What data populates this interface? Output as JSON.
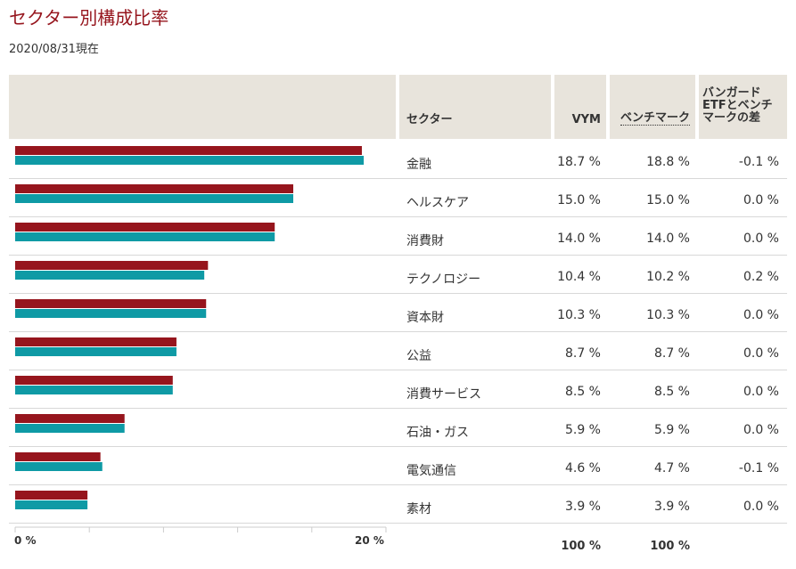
{
  "page": {
    "title": "セクター別構成比率",
    "date": "2020/08/31現在"
  },
  "table": {
    "headers": {
      "sector": "セクター",
      "vym": "VYM",
      "benchmark": "ベンチマーク",
      "diff_line1": "バンガード",
      "diff_line2": "ETFとベンチ",
      "diff_line3": "マークの差"
    },
    "rows": [
      {
        "sector": "金融",
        "vym": "18.7 %",
        "benchmark": "18.8 %",
        "diff": "-0.1 %"
      },
      {
        "sector": "ヘルスケア",
        "vym": "15.0 %",
        "benchmark": "15.0 %",
        "diff": "0.0 %"
      },
      {
        "sector": "消費財",
        "vym": "14.0 %",
        "benchmark": "14.0 %",
        "diff": "0.0 %"
      },
      {
        "sector": "テクノロジー",
        "vym": "10.4 %",
        "benchmark": "10.2 %",
        "diff": "0.2 %"
      },
      {
        "sector": "資本財",
        "vym": "10.3 %",
        "benchmark": "10.3 %",
        "diff": "0.0 %"
      },
      {
        "sector": "公益",
        "vym": "8.7 %",
        "benchmark": "8.7 %",
        "diff": "0.0 %"
      },
      {
        "sector": "消費サービス",
        "vym": "8.5 %",
        "benchmark": "8.5 %",
        "diff": "0.0 %"
      },
      {
        "sector": "石油・ガス",
        "vym": "5.9 %",
        "benchmark": "5.9 %",
        "diff": "0.0 %"
      },
      {
        "sector": "電気通信",
        "vym": "4.6 %",
        "benchmark": "4.7 %",
        "diff": "-0.1 %"
      },
      {
        "sector": "素材",
        "vym": "3.9 %",
        "benchmark": "3.9 %",
        "diff": "0.0 %"
      }
    ],
    "totals": {
      "vym": "100 %",
      "benchmark": "100 %"
    }
  },
  "chart_data": {
    "type": "bar",
    "orientation": "horizontal",
    "categories": [
      "金融",
      "ヘルスケア",
      "消費財",
      "テクノロジー",
      "資本財",
      "公益",
      "消費サービス",
      "石油・ガス",
      "電気通信",
      "素材"
    ],
    "series": [
      {
        "name": "VYM",
        "color": "#96151d",
        "values": [
          18.7,
          15.0,
          14.0,
          10.4,
          10.3,
          8.7,
          8.5,
          5.9,
          4.6,
          3.9
        ]
      },
      {
        "name": "ベンチマーク",
        "color": "#0f9aa5",
        "values": [
          18.8,
          15.0,
          14.0,
          10.2,
          10.3,
          8.7,
          8.5,
          5.9,
          4.7,
          3.9
        ]
      }
    ],
    "xlim": [
      0,
      20
    ],
    "tick_labels": {
      "start": "0 %",
      "end": "20 %"
    },
    "grid": false
  }
}
